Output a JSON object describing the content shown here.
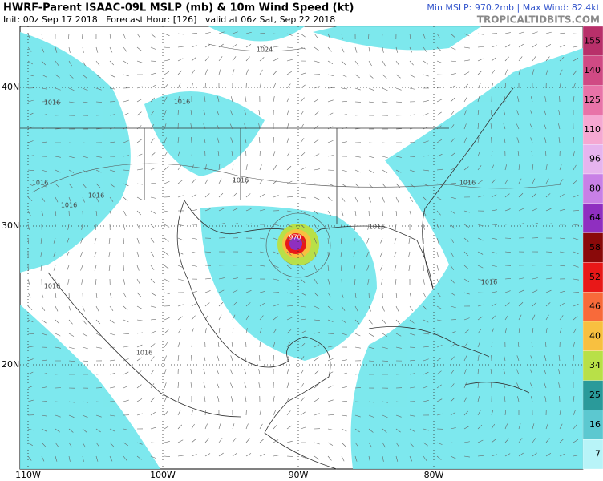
{
  "header": {
    "title": "HWRF-Parent ISAAC-09L MSLP (mb) & 10m Wind Speed (kt)",
    "subtitle": "Init: 00z Sep 17 2018   Forecast Hour: [126]   valid at 06z Sat, Sep 22 2018",
    "stats": "Min MSLP: 970.2mb | Max Wind: 82.4kt",
    "site": "TROPICALTIDBITS.COM"
  },
  "map": {
    "latitude_labels": [
      "40N",
      "30N",
      "20N"
    ],
    "longitude_labels": [
      "110W",
      "100W",
      "90W",
      "80W"
    ],
    "isobar_labels": [
      "1016",
      "1016",
      "1016",
      "1016",
      "1016",
      "1016",
      "1016",
      "1016",
      "1016",
      "1016",
      "1016",
      "1024",
      "970"
    ]
  },
  "colorbar": [
    {
      "label": "155",
      "color": "#b8306a"
    },
    {
      "label": "140",
      "color": "#d04a84"
    },
    {
      "label": "125",
      "color": "#e873a8"
    },
    {
      "label": "110",
      "color": "#f5a8d2"
    },
    {
      "label": "96",
      "color": "#e6b4ee"
    },
    {
      "label": "80",
      "color": "#c880e6"
    },
    {
      "label": "64",
      "color": "#8f2fc0"
    },
    {
      "label": "58",
      "color": "#8a0a0a"
    },
    {
      "label": "52",
      "color": "#e81818"
    },
    {
      "label": "46",
      "color": "#f86a3a"
    },
    {
      "label": "40",
      "color": "#f8c040"
    },
    {
      "label": "34",
      "color": "#b8e048"
    },
    {
      "label": "25",
      "color": "#2a9a9a"
    },
    {
      "label": "16",
      "color": "#5cc8d0"
    },
    {
      "label": "7",
      "color": "#b8f4f8"
    }
  ]
}
